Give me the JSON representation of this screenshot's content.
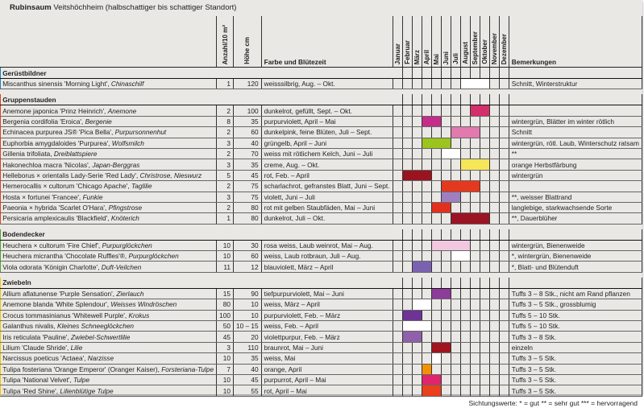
{
  "title": {
    "bold": "Rubinsaum",
    "rest": "Veitshöchheim (halbschattiger bis schattiger Standort)"
  },
  "headers": {
    "name": "",
    "count": "Anzahl/10 m²",
    "height": "Höhe cm",
    "color": "Farbe und Blütezeit",
    "remarks": "Bemerkungen"
  },
  "months": [
    "Januar",
    "Februar",
    "März",
    "April",
    "Mai",
    "Juni",
    "Juli",
    "August",
    "September",
    "Oktober",
    "November",
    "Dezember"
  ],
  "groups": [
    {
      "name": "Gerüstbildner",
      "color": "#1f7fc1",
      "rows": [
        {
          "name": "Miscanthus sinensis 'Morning Light',",
          "common": "Chinaschilf",
          "count": "1",
          "height": "120",
          "bloom": "weisssilbrig, Aug. – Okt.",
          "from": 8,
          "to": 10,
          "bar": "#ffffff",
          "remarks": "Schnitt, Winterstruktur"
        }
      ]
    },
    {
      "name": "Gruppenstauden",
      "color": "#e3401f",
      "rows": [
        {
          "name": "Anemone japonica 'Prinz Heinrich',",
          "common": "Anemone",
          "count": "2",
          "height": "100",
          "bloom": "dunkelrot, gefüllt, Sept. – Okt.",
          "from": 9,
          "to": 10,
          "bar": "#d42f6a",
          "remarks": ""
        },
        {
          "name": "Bergenia cordifolia 'Eroica',",
          "common": "Bergenie",
          "count": "8",
          "height": "35",
          "bloom": "purpurviolett, April – Mai",
          "from": 4,
          "to": 5,
          "bar": "#c42e8a",
          "remarks": "wintergrün, Blätter im winter rötlich"
        },
        {
          "name": "Echinacea purpurea JS® 'Pica Bella',",
          "common": "Purpursonnenhut",
          "count": "2",
          "height": "60",
          "bloom": "dunkelpink, feine Blüten, Juli – Sept.",
          "from": 7,
          "to": 9,
          "bar": "#e27aaf",
          "remarks": "Schnitt"
        },
        {
          "name": "Euphorbia amygdaloides 'Purpurea',",
          "common": "Wolfsmilch",
          "count": "3",
          "height": "40",
          "bloom": "grüngelb, April – Juni",
          "from": 4,
          "to": 6,
          "bar": "#9cc41e",
          "remarks": "wintergrün, rötl. Laub, Winterschutz ratsam"
        },
        {
          "name": "Gillenia trifoliata,",
          "common": "Dreiblattspiere",
          "count": "2",
          "height": "70",
          "bloom": "weiss mit rötlichem Kelch, Juni – Juli",
          "from": 6,
          "to": 7,
          "bar": "#ffffff",
          "remarks": "**"
        },
        {
          "name": "Hakonechloa macra 'Nicolas',",
          "common": "Japan-Berggras",
          "count": "3",
          "height": "35",
          "bloom": "creme, Aug. – Okt.",
          "from": 8,
          "to": 10,
          "bar": "#f6e65a",
          "remarks": "orange Herbstfärbung"
        },
        {
          "name": "Helleborus × orientalis Lady-Serie 'Red Lady',",
          "common": "Christrose, Nieswurz",
          "count": "5",
          "height": "45",
          "bloom": "rot, Feb. – April",
          "from": 2,
          "to": 4,
          "bar": "#9a1420",
          "remarks": "wintergrün"
        },
        {
          "name": "Hemerocallis × cultorum 'Chicago Apache',",
          "common": "Taglilie",
          "count": "2",
          "height": "75",
          "bloom": "scharlachrot, gefranstes Blatt, Juni – Sept.",
          "from": 6,
          "to": 9,
          "bar": "#e5391e",
          "remarks": ""
        },
        {
          "name": "Hosta × fortunei 'Francee',",
          "common": "Funkie",
          "count": "3",
          "height": "75",
          "bloom": "violett, Juni – Juli",
          "from": 6,
          "to": 7,
          "bar": "#a07fbf",
          "remarks": "**, weisser Blattrand"
        },
        {
          "name": "Paeonia × hybrida 'Scarlet O'Hara',",
          "common": "Pfingstrose",
          "count": "2",
          "height": "80",
          "bloom": "rot mit gelben Staubfäden, Mai – Juni",
          "from": 5,
          "to": 6,
          "bar": "#e3301e",
          "remarks": "langlebige, starkwachsende Sorte"
        },
        {
          "name": "Persicaria amplexicaulis 'Blackfield',",
          "common": "Knöterich",
          "count": "1",
          "height": "80",
          "bloom": "dunkelrot, Juli – Okt.",
          "from": 7,
          "to": 10,
          "bar": "#9b1424",
          "remarks": "**, Dauerblüher"
        }
      ]
    },
    {
      "name": "Bodendecker",
      "color": "#4da32c",
      "rows": [
        {
          "name": "Heuchera × cultorum 'Fire Chief',",
          "common": "Purpurglöckchen",
          "count": "10",
          "height": "30",
          "bloom": "rosa weiss, Laub weinrot, Mai – Aug.",
          "from": 5,
          "to": 8,
          "bar": "#f1c8e0",
          "remarks": "wintergrün, Bienenweide"
        },
        {
          "name": "Heuchera micrantha 'Chocolate Ruffles'®,",
          "common": "Purpurglöckchen",
          "count": "10",
          "height": "60",
          "bloom": "weiss, Laub rotbraun, Juli – Aug.",
          "from": 7,
          "to": 8,
          "bar": "#ffffff",
          "remarks": "*, wintergrün, Bienenweide"
        },
        {
          "name": "Viola odorata 'Königin Charlotte',",
          "common": "Duft-Veilchen",
          "count": "11",
          "height": "12",
          "bloom": "blauviolett, März – April",
          "from": 3,
          "to": 4,
          "bar": "#7b62b0",
          "remarks": "*, Blatt- und Blütenduft"
        }
      ]
    },
    {
      "name": "Zwiebeln",
      "color": "#f5c400",
      "rows": [
        {
          "name": "Allium aflatunense 'Purple Sensation',",
          "common": "Zierlauch",
          "count": "15",
          "height": "90",
          "bloom": "tiefpurpurviolett, Mai – Juni",
          "from": 5,
          "to": 6,
          "bar": "#8e3c9a",
          "remarks": "Tuffs 3 – 8 Stk., nicht am Rand pflanzen"
        },
        {
          "name": "Anemone blanda 'White Splendour',",
          "common": "Weisses Windröschen",
          "count": "80",
          "height": "10",
          "bloom": "weiss, März – April",
          "from": 3,
          "to": 4,
          "bar": "#ffffff",
          "remarks": "Tuffs 3 – 5 Stk., grossblumig"
        },
        {
          "name": "Crocus tommasinianus 'Whitewell Purple',",
          "common": "Krokus",
          "count": "100",
          "height": "10",
          "bloom": "purpurviolett, Feb. – März",
          "from": 2,
          "to": 3,
          "bar": "#6e3394",
          "remarks": "Tuffs 5 – 10 Stk."
        },
        {
          "name": "Galanthus nivalis,",
          "common": "Kleines Schneeglöckchen",
          "count": "50",
          "height": "10 – 15",
          "bloom": "weiss, Feb. – April",
          "from": 2,
          "to": 4,
          "bar": "#ffffff",
          "remarks": "Tuffs 5 – 10 Stk."
        },
        {
          "name": "Iris reticulata 'Pauline',",
          "common": "Zwiebel-Schwertlilie",
          "count": "45",
          "height": "20",
          "bloom": "violettpurpur, Feb. – März",
          "from": 2,
          "to": 3,
          "bar": "#9060a8",
          "remarks": "Tuffs 3 – 8 Stk."
        },
        {
          "name": "Lilium 'Claude Shride',",
          "common": "Lilie",
          "count": "3",
          "height": "110",
          "bloom": "braunrot, Mai – Juni",
          "from": 5,
          "to": 6,
          "bar": "#a0141e",
          "remarks": "einzeln"
        },
        {
          "name": "Narcissus poeticus 'Actaea',",
          "common": "Narzisse",
          "count": "10",
          "height": "35",
          "bloom": "weiss, Mai",
          "from": 5,
          "to": 5,
          "bar": "#ffffff",
          "remarks": "Tuffs 3 – 5 Stk."
        },
        {
          "name": "Tulipa fosteriana 'Orange Emperor' (Oranger Kaiser),",
          "common": "Forsteriana-Tulpe",
          "count": "7",
          "height": "40",
          "bloom": "orange, April",
          "from": 4,
          "to": 4,
          "bar": "#f39200",
          "remarks": "Tuffs 3 – 5 Stk."
        },
        {
          "name": "Tulipa 'National Velvet',",
          "common": "Tulpe",
          "count": "10",
          "height": "45",
          "bloom": "purpurrot, April – Mai",
          "from": 4,
          "to": 5,
          "bar": "#e0256e",
          "remarks": "Tuffs 3 – 5 Stk."
        },
        {
          "name": "Tulipa 'Red Shine',",
          "common": "Lilienblütige Tulpe",
          "count": "10",
          "height": "55",
          "bloom": "rot, April – Mai",
          "from": 4,
          "to": 5,
          "bar": "#e8411c",
          "remarks": "Tuffs 3 – 5 Stk."
        }
      ]
    }
  ],
  "footer": "Sichtungswerte: * = gut   ** = sehr gut   *** = hervorragend"
}
